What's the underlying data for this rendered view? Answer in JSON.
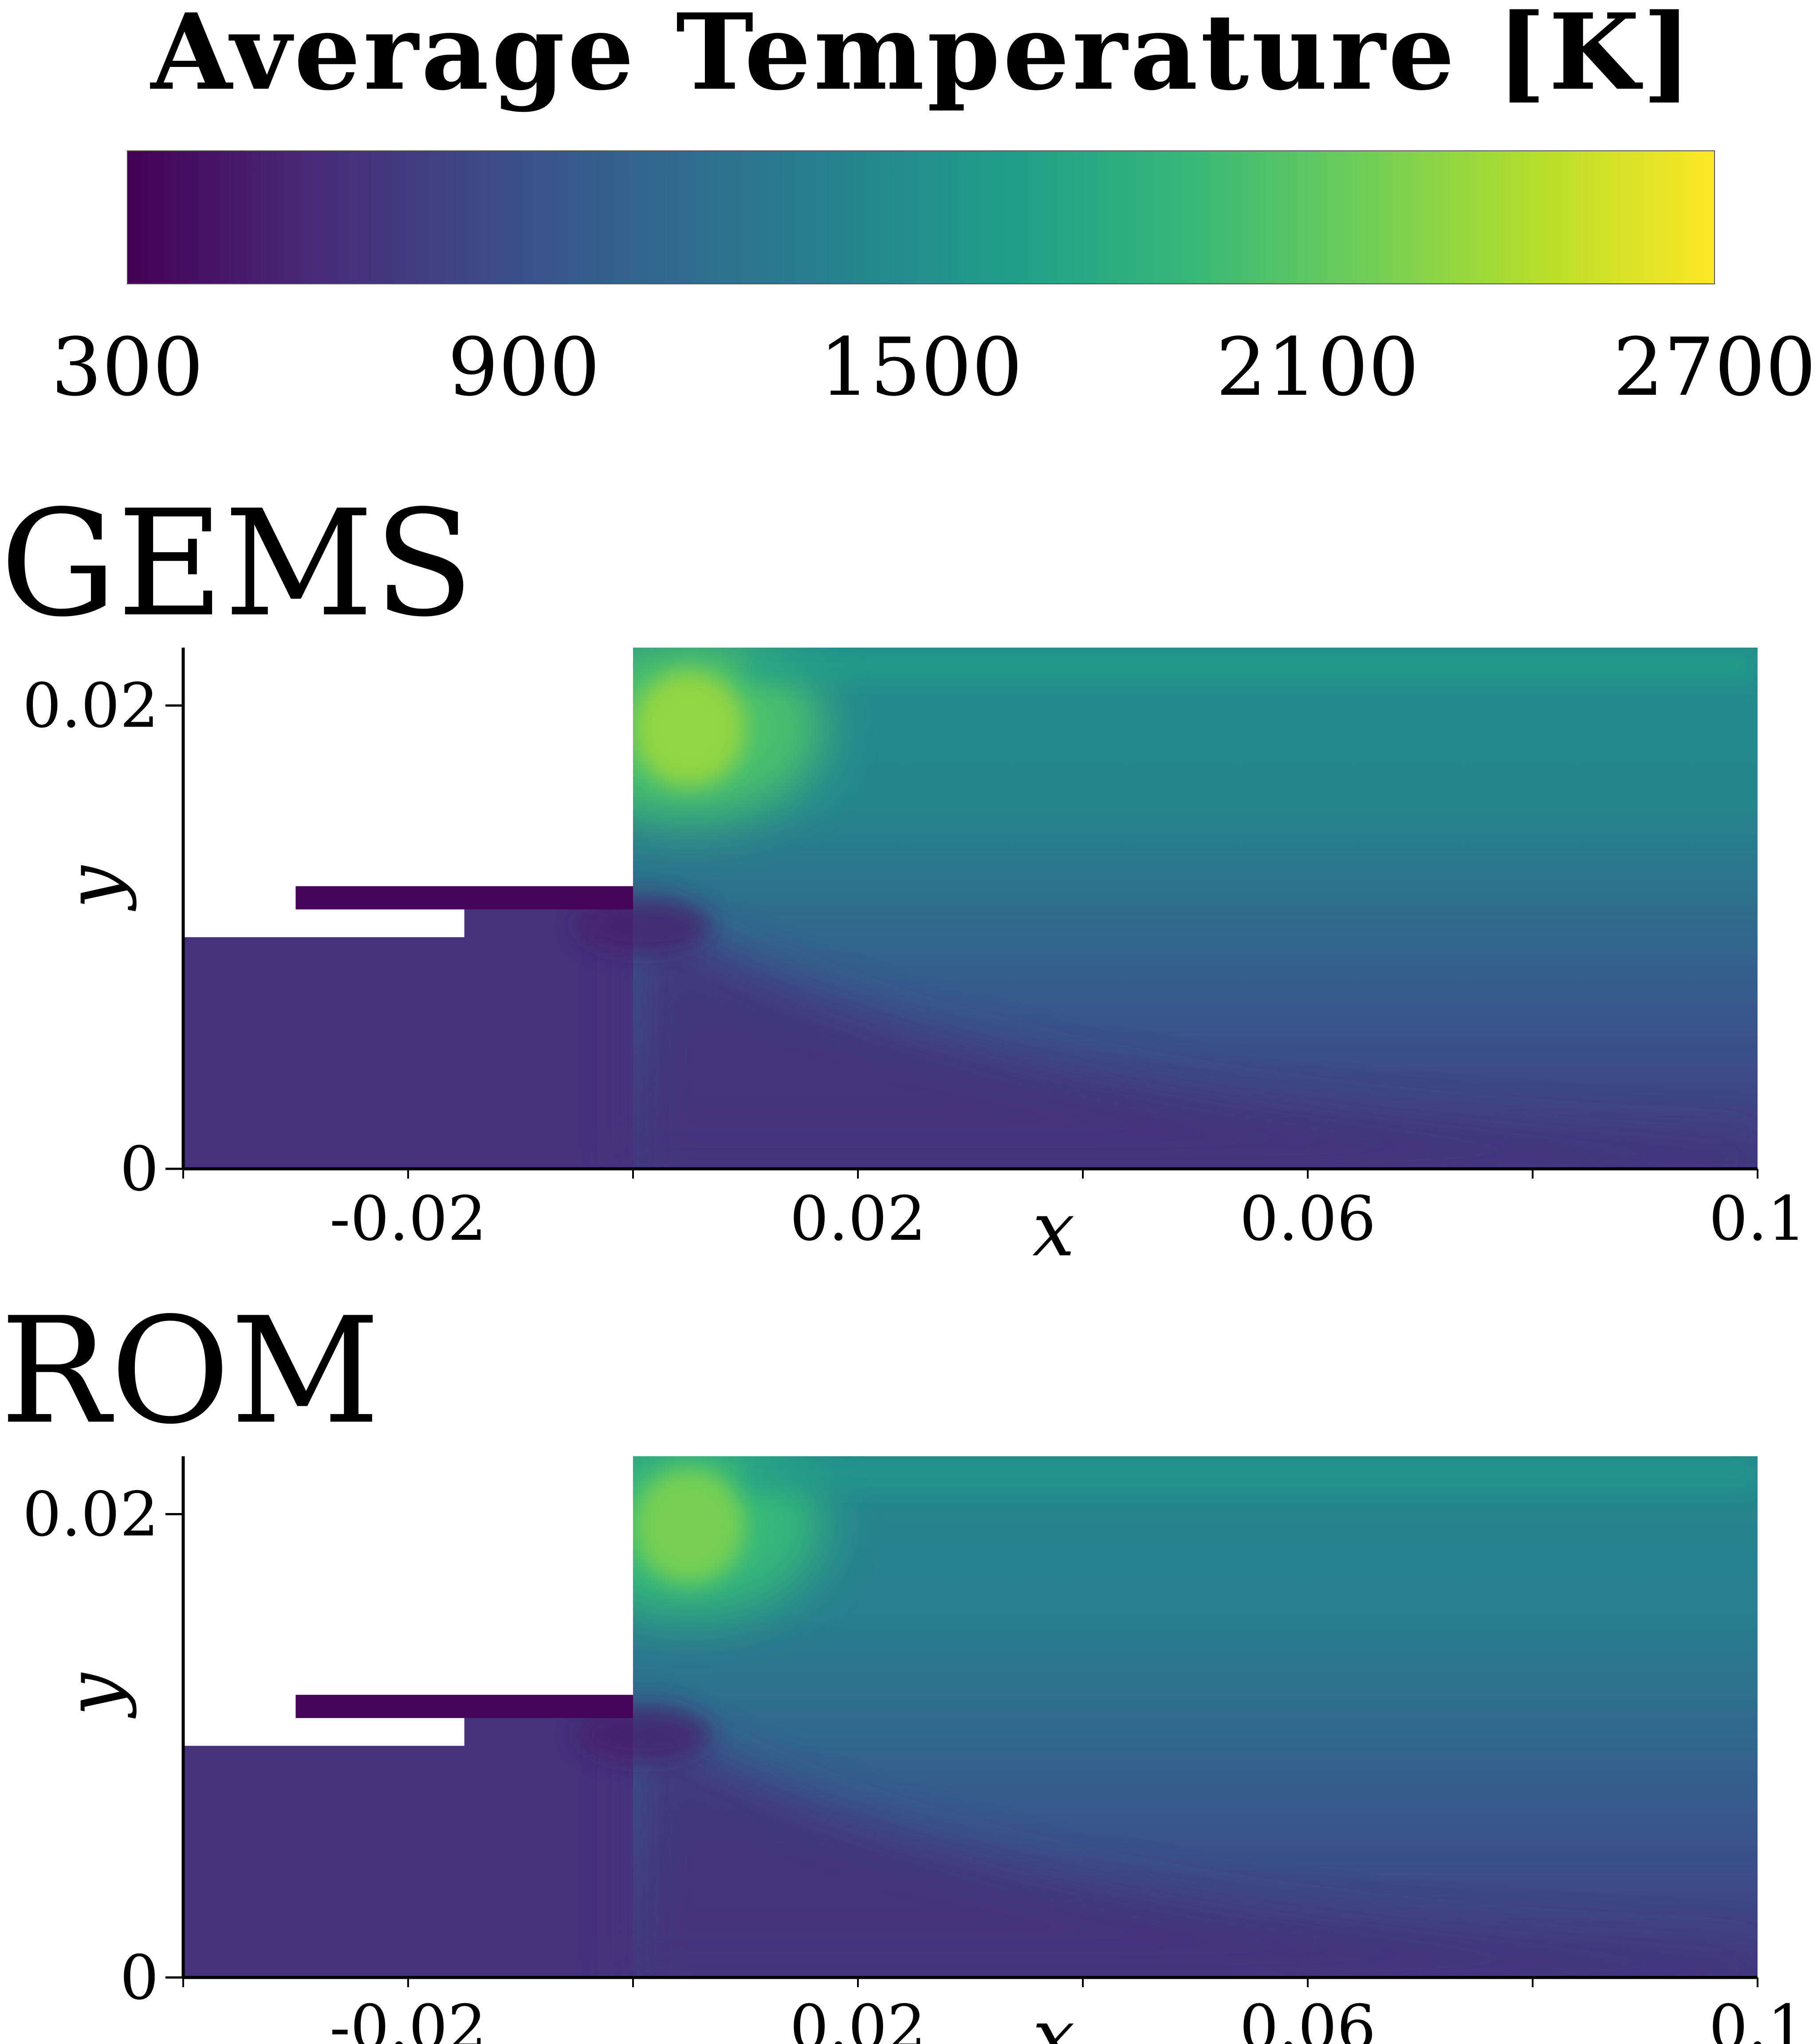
{
  "colorbar": {
    "title": "Average Temperature [K]",
    "range": [
      300,
      2700
    ],
    "ticks": [
      "300",
      "900",
      "1500",
      "2100",
      "2700"
    ],
    "colormap": "viridis",
    "stops": [
      "#440154",
      "#482878",
      "#3e4989",
      "#31688e",
      "#26828e",
      "#1f9e89",
      "#35b779",
      "#6ece58",
      "#b5de2b",
      "#fde725"
    ]
  },
  "chart_data": [
    {
      "type": "heatmap",
      "title": "GEMS",
      "xlabel": "x",
      "ylabel": "y",
      "xlim": [
        -0.04,
        0.1
      ],
      "ylim": [
        0,
        0.0225
      ],
      "xticks": [
        "-0.02",
        "0.02",
        "0.06",
        "0.1"
      ],
      "yticks": [
        "0",
        "0.02"
      ],
      "geometry": {
        "inlet_top_y": 0.01,
        "oxidizer_post": {
          "x_start": -0.03,
          "x_end": 0.0,
          "y_bottom": 0.0112,
          "y_top": 0.0122
        },
        "step_x": 0.0,
        "chamber_top_y": 0.0225
      },
      "field": {
        "inlet_temperature": 650,
        "oxidizer_temperature": 320,
        "lower_chamber_temperature": 700,
        "mid_chamber_temperature": 1000,
        "upper_chamber_temperature": 1400,
        "hot_spot": {
          "x": 0.005,
          "y": 0.019,
          "temperature": 2300
        }
      }
    },
    {
      "type": "heatmap",
      "title": "ROM",
      "xlabel": "x",
      "ylabel": "y",
      "xlim": [
        -0.04,
        0.1
      ],
      "ylim": [
        0,
        0.0225
      ],
      "xticks": [
        "-0.02",
        "0.02",
        "0.06",
        "0.1"
      ],
      "yticks": [
        "0",
        "0.02"
      ],
      "geometry": {
        "inlet_top_y": 0.01,
        "oxidizer_post": {
          "x_start": -0.03,
          "x_end": 0.0,
          "y_bottom": 0.0112,
          "y_top": 0.0122
        },
        "step_x": 0.0,
        "chamber_top_y": 0.0225
      },
      "field": {
        "inlet_temperature": 650,
        "oxidizer_temperature": 320,
        "lower_chamber_temperature": 700,
        "mid_chamber_temperature": 1000,
        "upper_chamber_temperature": 1350,
        "hot_spot": {
          "x": 0.005,
          "y": 0.0195,
          "temperature": 2200
        }
      }
    }
  ]
}
